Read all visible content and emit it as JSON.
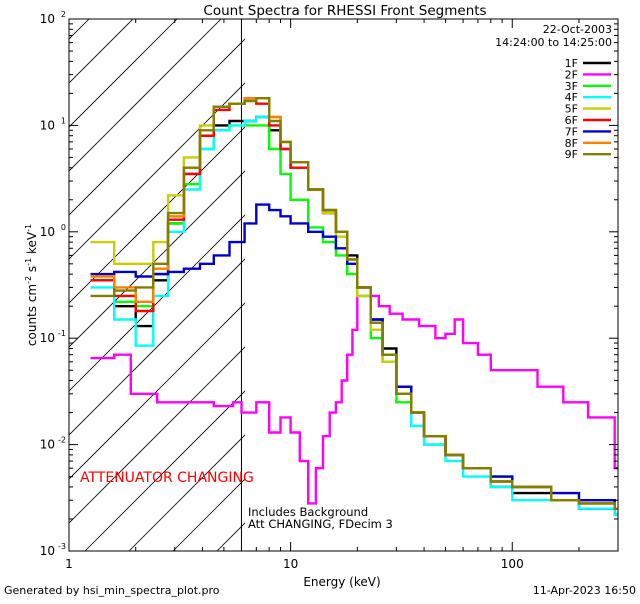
{
  "chart_data": {
    "type": "line",
    "title": "Count Spectra for RHESSI Front Segments",
    "xlabel": "Energy (keV)",
    "ylabel": "counts cm-2 s-1 keV-1",
    "xscale": "log",
    "yscale": "log",
    "xlim": [
      1,
      300
    ],
    "ylim": [
      0.001,
      100
    ],
    "x_ticks": [
      {
        "value": 1,
        "label": "1"
      },
      {
        "value": 10,
        "label": "10"
      },
      {
        "value": 100,
        "label": "100"
      }
    ],
    "y_ticks": [
      {
        "value": 0.001,
        "base": "10",
        "exp": "-3"
      },
      {
        "value": 0.01,
        "base": "10",
        "exp": "-2"
      },
      {
        "value": 0.1,
        "base": "10",
        "exp": "-1"
      },
      {
        "value": 1,
        "base": "10",
        "exp": "0"
      },
      {
        "value": 10,
        "base": "10",
        "exp": "1"
      },
      {
        "value": 100,
        "base": "10",
        "exp": "2"
      }
    ],
    "date": "22-Oct-2003",
    "time_range": "14:24:00 to 14:25:00",
    "attenuator_energy": 6,
    "annotations": {
      "attenuator": "ATTENUATOR CHANGING",
      "background": "Includes Background",
      "att_state": "Att CHANGING, FDecim 3"
    },
    "series": [
      {
        "name": "1F",
        "color": "#000000",
        "points": [
          [
            1.25,
            0.35
          ],
          [
            1.6,
            0.2
          ],
          [
            2.0,
            0.13
          ],
          [
            2.4,
            0.35
          ],
          [
            2.8,
            1.2
          ],
          [
            3.3,
            3.5
          ],
          [
            3.9,
            8
          ],
          [
            4.5,
            10
          ],
          [
            5.3,
            11
          ],
          [
            6.2,
            11
          ],
          [
            7.0,
            12
          ],
          [
            8.0,
            9
          ],
          [
            9,
            6
          ],
          [
            10,
            4
          ],
          [
            12,
            2.5
          ],
          [
            14,
            1.5
          ],
          [
            16,
            1.0
          ],
          [
            18,
            0.6
          ],
          [
            20,
            0.3
          ],
          [
            23,
            0.15
          ],
          [
            26,
            0.08
          ],
          [
            30,
            0.035
          ],
          [
            35,
            0.02
          ],
          [
            40,
            0.012
          ],
          [
            50,
            0.008
          ],
          [
            60,
            0.006
          ],
          [
            80,
            0.004
          ],
          [
            100,
            0.0035
          ],
          [
            150,
            0.003
          ],
          [
            200,
            0.0025
          ],
          [
            290,
            0.0022
          ]
        ]
      },
      {
        "name": "2F",
        "color": "#ff00ff",
        "points": [
          [
            1.25,
            0.065
          ],
          [
            1.6,
            0.07
          ],
          [
            1.9,
            0.03
          ],
          [
            2.5,
            0.025
          ],
          [
            3.5,
            0.025
          ],
          [
            4.5,
            0.023
          ],
          [
            5.5,
            0.025
          ],
          [
            6,
            0.02
          ],
          [
            7,
            0.025
          ],
          [
            8,
            0.013
          ],
          [
            9,
            0.018
          ],
          [
            10,
            0.013
          ],
          [
            11,
            0.007
          ],
          [
            12,
            0.0028
          ],
          [
            13,
            0.006
          ],
          [
            14,
            0.012
          ],
          [
            15,
            0.02
          ],
          [
            16,
            0.025
          ],
          [
            17,
            0.04
          ],
          [
            18,
            0.07
          ],
          [
            19,
            0.12
          ],
          [
            20,
            0.25
          ],
          [
            22,
            0.25
          ],
          [
            25,
            0.2
          ],
          [
            28,
            0.17
          ],
          [
            32,
            0.15
          ],
          [
            38,
            0.13
          ],
          [
            45,
            0.1
          ],
          [
            50,
            0.11
          ],
          [
            55,
            0.15
          ],
          [
            60,
            0.09
          ],
          [
            70,
            0.07
          ],
          [
            80,
            0.05
          ],
          [
            100,
            0.05
          ],
          [
            130,
            0.035
          ],
          [
            170,
            0.025
          ],
          [
            220,
            0.018
          ],
          [
            290,
            0.006
          ]
        ]
      },
      {
        "name": "3F",
        "color": "#00ff00",
        "points": [
          [
            1.25,
            0.35
          ],
          [
            1.6,
            0.22
          ],
          [
            2.0,
            0.2
          ],
          [
            2.4,
            0.4
          ],
          [
            2.8,
            1.2
          ],
          [
            3.3,
            2.8
          ],
          [
            3.9,
            6
          ],
          [
            4.5,
            9
          ],
          [
            5.3,
            10
          ],
          [
            6.2,
            10
          ],
          [
            7.0,
            10
          ],
          [
            8.0,
            6
          ],
          [
            9,
            3.5
          ],
          [
            10,
            2
          ],
          [
            12,
            1.1
          ],
          [
            14,
            0.8
          ],
          [
            16,
            0.6
          ],
          [
            18,
            0.4
          ],
          [
            20,
            0.25
          ],
          [
            23,
            0.1
          ],
          [
            26,
            0.06
          ],
          [
            30,
            0.025
          ],
          [
            35,
            0.015
          ],
          [
            40,
            0.01
          ],
          [
            50,
            0.008
          ],
          [
            60,
            0.006
          ],
          [
            80,
            0.005
          ],
          [
            100,
            0.004
          ],
          [
            150,
            0.003
          ],
          [
            200,
            0.003
          ],
          [
            290,
            0.0025
          ]
        ]
      },
      {
        "name": "4F",
        "color": "#00ffff",
        "points": [
          [
            1.25,
            0.3
          ],
          [
            1.6,
            0.15
          ],
          [
            2.0,
            0.085
          ],
          [
            2.4,
            0.25
          ],
          [
            2.8,
            1.0
          ],
          [
            3.3,
            2.5
          ],
          [
            3.9,
            6
          ],
          [
            4.5,
            9
          ],
          [
            5.3,
            10
          ],
          [
            6.2,
            11
          ],
          [
            7.0,
            12
          ],
          [
            8.0,
            10
          ],
          [
            9,
            6
          ],
          [
            10,
            4
          ],
          [
            12,
            2.5
          ],
          [
            14,
            1.6
          ],
          [
            16,
            1.0
          ],
          [
            18,
            0.5
          ],
          [
            20,
            0.25
          ],
          [
            23,
            0.12
          ],
          [
            26,
            0.06
          ],
          [
            30,
            0.03
          ],
          [
            35,
            0.015
          ],
          [
            40,
            0.01
          ],
          [
            50,
            0.007
          ],
          [
            60,
            0.005
          ],
          [
            80,
            0.004
          ],
          [
            100,
            0.003
          ],
          [
            150,
            0.003
          ],
          [
            200,
            0.0025
          ],
          [
            290,
            0.0022
          ]
        ]
      },
      {
        "name": "5F",
        "color": "#cccc00",
        "points": [
          [
            1.25,
            0.8
          ],
          [
            1.6,
            0.5
          ],
          [
            2.0,
            0.5
          ],
          [
            2.4,
            0.8
          ],
          [
            2.8,
            2.2
          ],
          [
            3.3,
            5
          ],
          [
            3.9,
            10
          ],
          [
            4.5,
            15
          ],
          [
            5.3,
            16
          ],
          [
            6.2,
            17
          ],
          [
            7.0,
            18
          ],
          [
            8.0,
            12
          ],
          [
            9,
            7
          ],
          [
            10,
            4.5
          ],
          [
            12,
            2.5
          ],
          [
            14,
            1.5
          ],
          [
            16,
            0.9
          ],
          [
            18,
            0.5
          ],
          [
            20,
            0.25
          ],
          [
            23,
            0.12
          ],
          [
            26,
            0.06
          ],
          [
            30,
            0.03
          ],
          [
            35,
            0.02
          ],
          [
            40,
            0.012
          ],
          [
            50,
            0.008
          ],
          [
            60,
            0.006
          ],
          [
            80,
            0.005
          ],
          [
            100,
            0.004
          ],
          [
            150,
            0.0035
          ],
          [
            200,
            0.003
          ],
          [
            290,
            0.0025
          ]
        ]
      },
      {
        "name": "6F",
        "color": "#ff0000",
        "points": [
          [
            1.25,
            0.35
          ],
          [
            1.6,
            0.25
          ],
          [
            2.0,
            0.18
          ],
          [
            2.4,
            0.4
          ],
          [
            2.8,
            1.3
          ],
          [
            3.3,
            3.5
          ],
          [
            3.9,
            8
          ],
          [
            4.5,
            14
          ],
          [
            5.3,
            16
          ],
          [
            6.2,
            17
          ],
          [
            7.0,
            16
          ],
          [
            8.0,
            10
          ],
          [
            9,
            6
          ],
          [
            10,
            4
          ],
          [
            12,
            2.5
          ],
          [
            14,
            1.6
          ],
          [
            16,
            1.0
          ],
          [
            18,
            0.55
          ],
          [
            20,
            0.3
          ],
          [
            23,
            0.14
          ],
          [
            26,
            0.07
          ],
          [
            30,
            0.03
          ],
          [
            35,
            0.02
          ],
          [
            40,
            0.012
          ],
          [
            50,
            0.008
          ],
          [
            60,
            0.006
          ],
          [
            80,
            0.0045
          ],
          [
            100,
            0.004
          ],
          [
            150,
            0.003
          ],
          [
            200,
            0.0028
          ],
          [
            290,
            0.0025
          ]
        ]
      },
      {
        "name": "7F",
        "color": "#0000cc",
        "points": [
          [
            1.25,
            0.4
          ],
          [
            1.6,
            0.42
          ],
          [
            2.0,
            0.38
          ],
          [
            2.4,
            0.4
          ],
          [
            2.8,
            0.42
          ],
          [
            3.3,
            0.45
          ],
          [
            3.9,
            0.5
          ],
          [
            4.5,
            0.6
          ],
          [
            5.3,
            0.8
          ],
          [
            6.2,
            1.2
          ],
          [
            7.0,
            1.8
          ],
          [
            8.0,
            1.6
          ],
          [
            9,
            1.4
          ],
          [
            10,
            1.2
          ],
          [
            12,
            1.0
          ],
          [
            14,
            0.9
          ],
          [
            16,
            0.7
          ],
          [
            18,
            0.5
          ],
          [
            20,
            0.3
          ],
          [
            23,
            0.15
          ],
          [
            26,
            0.07
          ],
          [
            30,
            0.035
          ],
          [
            35,
            0.02
          ],
          [
            40,
            0.012
          ],
          [
            50,
            0.008
          ],
          [
            60,
            0.006
          ],
          [
            80,
            0.005
          ],
          [
            100,
            0.004
          ],
          [
            150,
            0.0035
          ],
          [
            200,
            0.003
          ],
          [
            290,
            0.0025
          ]
        ]
      },
      {
        "name": "8F",
        "color": "#ff8000",
        "points": [
          [
            1.25,
            0.38
          ],
          [
            1.6,
            0.3
          ],
          [
            2.0,
            0.22
          ],
          [
            2.4,
            0.45
          ],
          [
            2.8,
            1.4
          ],
          [
            3.3,
            4
          ],
          [
            3.9,
            9
          ],
          [
            4.5,
            15
          ],
          [
            5.3,
            16
          ],
          [
            6.2,
            18
          ],
          [
            7.0,
            18
          ],
          [
            8.0,
            12
          ],
          [
            9,
            7
          ],
          [
            10,
            4.5
          ],
          [
            12,
            2.5
          ],
          [
            14,
            1.6
          ],
          [
            16,
            1.0
          ],
          [
            18,
            0.55
          ],
          [
            20,
            0.3
          ],
          [
            23,
            0.14
          ],
          [
            26,
            0.07
          ],
          [
            30,
            0.03
          ],
          [
            35,
            0.02
          ],
          [
            40,
            0.012
          ],
          [
            50,
            0.008
          ],
          [
            60,
            0.006
          ],
          [
            80,
            0.0045
          ],
          [
            100,
            0.004
          ],
          [
            150,
            0.003
          ],
          [
            200,
            0.0028
          ],
          [
            290,
            0.0025
          ]
        ]
      },
      {
        "name": "9F",
        "color": "#808000",
        "points": [
          [
            1.25,
            0.25
          ],
          [
            1.6,
            0.28
          ],
          [
            2.0,
            0.3
          ],
          [
            2.4,
            0.5
          ],
          [
            2.8,
            1.5
          ],
          [
            3.3,
            4
          ],
          [
            3.9,
            9
          ],
          [
            4.5,
            15
          ],
          [
            5.3,
            16
          ],
          [
            6.2,
            17
          ],
          [
            7.0,
            18
          ],
          [
            8.0,
            11
          ],
          [
            9,
            7
          ],
          [
            10,
            4.5
          ],
          [
            12,
            2.5
          ],
          [
            14,
            1.6
          ],
          [
            16,
            1.0
          ],
          [
            18,
            0.55
          ],
          [
            20,
            0.3
          ],
          [
            23,
            0.14
          ],
          [
            26,
            0.07
          ],
          [
            30,
            0.03
          ],
          [
            35,
            0.02
          ],
          [
            40,
            0.012
          ],
          [
            50,
            0.008
          ],
          [
            60,
            0.006
          ],
          [
            80,
            0.0045
          ],
          [
            100,
            0.004
          ],
          [
            150,
            0.003
          ],
          [
            200,
            0.0028
          ],
          [
            290,
            0.0025
          ]
        ]
      }
    ]
  },
  "footer": {
    "generated_by": "Generated by hsi_min_spectra_plot.pro",
    "timestamp": "11-Apr-2023 16:50"
  }
}
